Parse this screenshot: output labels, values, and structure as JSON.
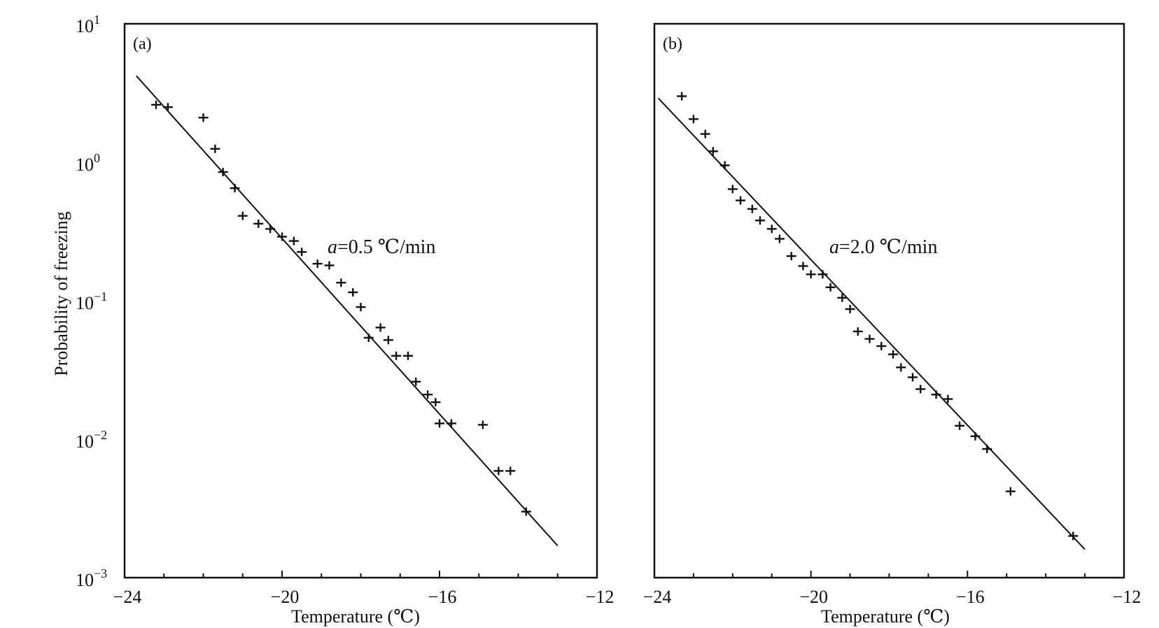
{
  "chart_data": [
    {
      "type": "scatter",
      "panel_label": "(a)",
      "annotation_prefix": "a",
      "annotation_value": "=0.5 ℃/min",
      "xlabel": "Temperature (℃)",
      "ylabel": "Probability of freezing",
      "xlim": [
        -24,
        -12
      ],
      "ylim": [
        0.001,
        10
      ],
      "yscale": "log",
      "xticks": [
        -24,
        -20,
        -16,
        -12
      ],
      "xtick_labels": [
        "−24",
        "−20",
        "−16",
        "−12"
      ],
      "yticks": [
        {
          "base": "10",
          "exp": "1"
        },
        {
          "base": "10",
          "exp": "0"
        },
        {
          "base": "10",
          "exp": "−1"
        },
        {
          "base": "10",
          "exp": "−2"
        },
        {
          "base": "10",
          "exp": "−3"
        }
      ],
      "fit_line": {
        "x": [
          -23.7,
          -13.0
        ],
        "y": [
          4.2,
          0.0017
        ]
      },
      "points": [
        {
          "x": -23.2,
          "y": 2.6
        },
        {
          "x": -22.9,
          "y": 2.5
        },
        {
          "x": -22.0,
          "y": 2.1
        },
        {
          "x": -21.7,
          "y": 1.25
        },
        {
          "x": -21.5,
          "y": 0.85
        },
        {
          "x": -21.2,
          "y": 0.65
        },
        {
          "x": -21.0,
          "y": 0.41
        },
        {
          "x": -20.6,
          "y": 0.36
        },
        {
          "x": -20.3,
          "y": 0.33
        },
        {
          "x": -20.0,
          "y": 0.29
        },
        {
          "x": -19.7,
          "y": 0.27
        },
        {
          "x": -19.5,
          "y": 0.225
        },
        {
          "x": -19.1,
          "y": 0.185
        },
        {
          "x": -18.8,
          "y": 0.18
        },
        {
          "x": -18.5,
          "y": 0.135
        },
        {
          "x": -18.2,
          "y": 0.115
        },
        {
          "x": -18.0,
          "y": 0.09
        },
        {
          "x": -17.8,
          "y": 0.054
        },
        {
          "x": -17.5,
          "y": 0.064
        },
        {
          "x": -17.3,
          "y": 0.052
        },
        {
          "x": -17.1,
          "y": 0.04
        },
        {
          "x": -16.8,
          "y": 0.04
        },
        {
          "x": -16.6,
          "y": 0.026
        },
        {
          "x": -16.3,
          "y": 0.021
        },
        {
          "x": -16.1,
          "y": 0.0185
        },
        {
          "x": -16.0,
          "y": 0.013
        },
        {
          "x": -15.7,
          "y": 0.013
        },
        {
          "x": -14.9,
          "y": 0.0127
        },
        {
          "x": -14.5,
          "y": 0.0059
        },
        {
          "x": -14.2,
          "y": 0.0059
        },
        {
          "x": -13.8,
          "y": 0.003
        }
      ]
    },
    {
      "type": "scatter",
      "panel_label": "(b)",
      "annotation_prefix": "a",
      "annotation_value": "=2.0 ℃/min",
      "xlabel": "Temperature (℃)",
      "ylabel": "",
      "xlim": [
        -24,
        -12
      ],
      "ylim": [
        0.001,
        10
      ],
      "yscale": "log",
      "xticks": [
        -24,
        -20,
        -16,
        -12
      ],
      "xtick_labels": [
        "−24",
        "−20",
        "−16",
        "−12"
      ],
      "fit_line": {
        "x": [
          -23.9,
          -13.0
        ],
        "y": [
          2.9,
          0.0016
        ]
      },
      "points": [
        {
          "x": -23.3,
          "y": 3.0
        },
        {
          "x": -23.0,
          "y": 2.05
        },
        {
          "x": -22.7,
          "y": 1.6
        },
        {
          "x": -22.5,
          "y": 1.2
        },
        {
          "x": -22.2,
          "y": 0.95
        },
        {
          "x": -22.0,
          "y": 0.64
        },
        {
          "x": -21.8,
          "y": 0.53
        },
        {
          "x": -21.5,
          "y": 0.46
        },
        {
          "x": -21.3,
          "y": 0.38
        },
        {
          "x": -21.0,
          "y": 0.33
        },
        {
          "x": -20.8,
          "y": 0.28
        },
        {
          "x": -20.5,
          "y": 0.21
        },
        {
          "x": -20.2,
          "y": 0.178
        },
        {
          "x": -20.0,
          "y": 0.155
        },
        {
          "x": -19.7,
          "y": 0.155
        },
        {
          "x": -19.5,
          "y": 0.125
        },
        {
          "x": -19.2,
          "y": 0.105
        },
        {
          "x": -19.0,
          "y": 0.087
        },
        {
          "x": -18.8,
          "y": 0.06
        },
        {
          "x": -18.5,
          "y": 0.053
        },
        {
          "x": -18.2,
          "y": 0.047
        },
        {
          "x": -17.9,
          "y": 0.041
        },
        {
          "x": -17.7,
          "y": 0.033
        },
        {
          "x": -17.4,
          "y": 0.028
        },
        {
          "x": -17.2,
          "y": 0.023
        },
        {
          "x": -16.8,
          "y": 0.021
        },
        {
          "x": -16.5,
          "y": 0.0195
        },
        {
          "x": -16.2,
          "y": 0.0125
        },
        {
          "x": -15.8,
          "y": 0.0105
        },
        {
          "x": -15.5,
          "y": 0.0085
        },
        {
          "x": -14.9,
          "y": 0.0042
        },
        {
          "x": -13.3,
          "y": 0.002
        }
      ]
    }
  ]
}
